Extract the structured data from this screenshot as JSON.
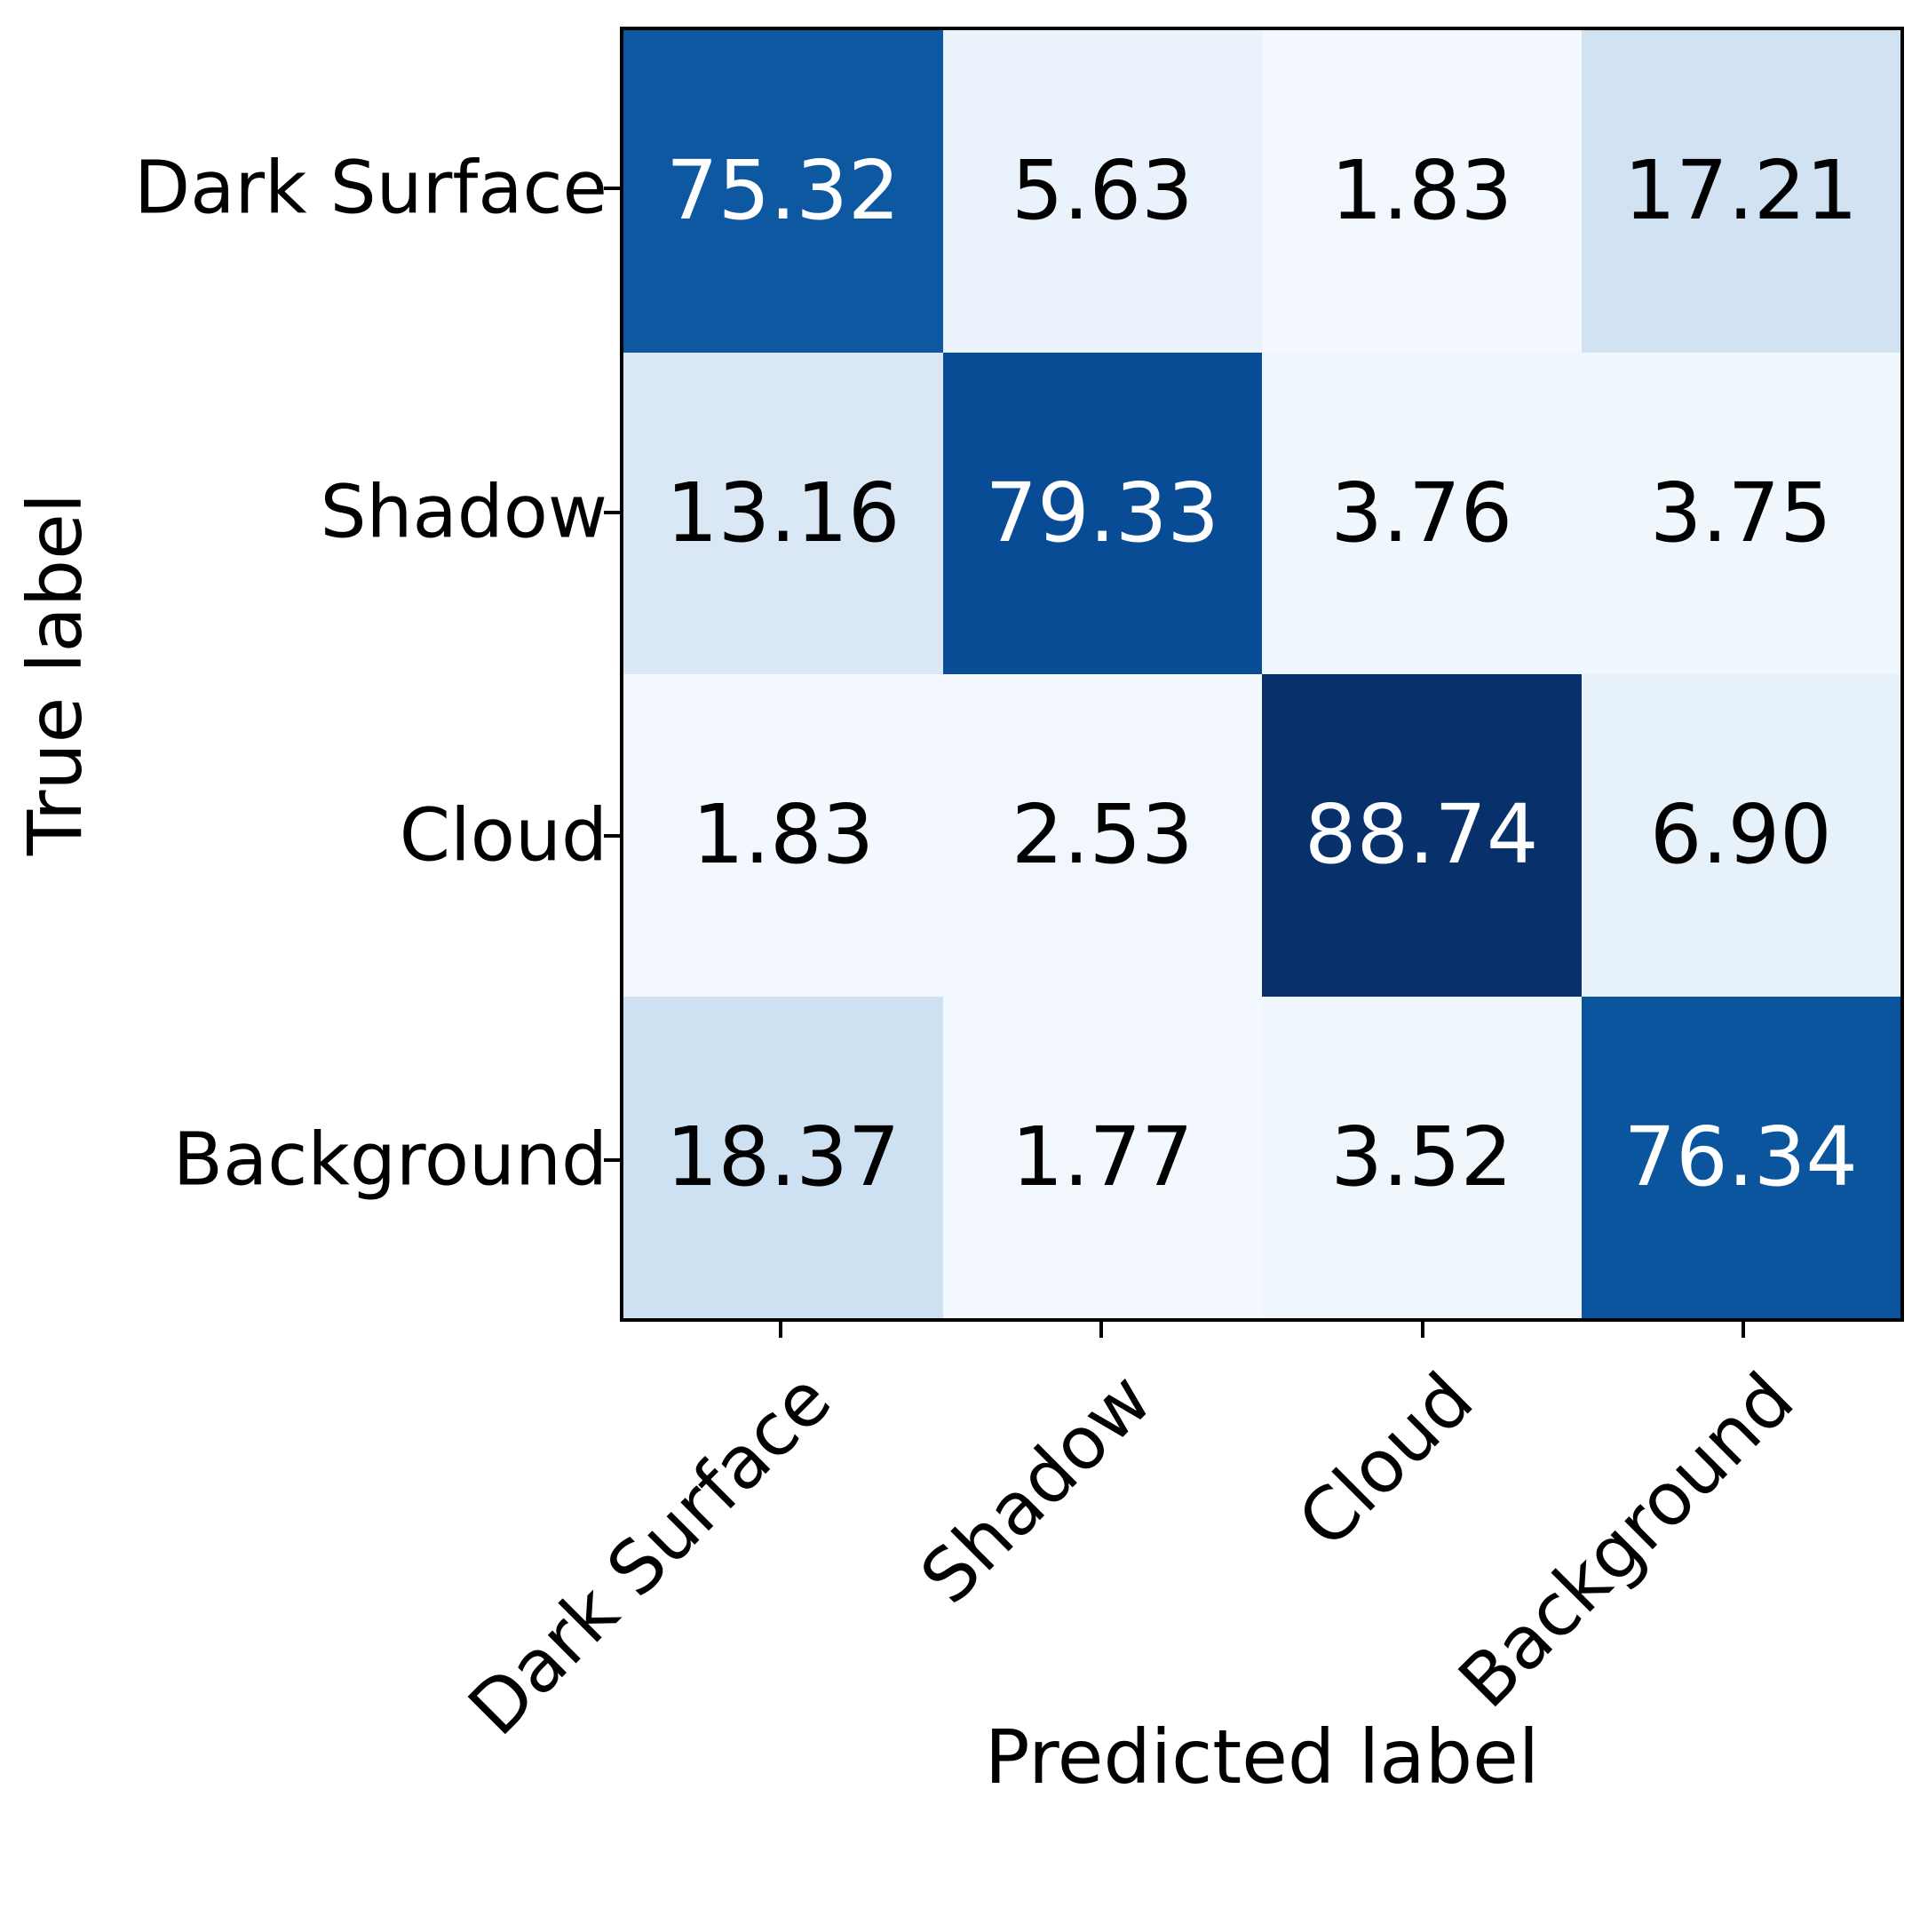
{
  "chart_data": {
    "type": "heatmap",
    "subtype": "confusion-matrix",
    "title": "",
    "xlabel": "Predicted label",
    "ylabel": "True label",
    "x_categories": [
      "Dark Surface",
      "Shadow",
      "Cloud",
      "Background"
    ],
    "y_categories": [
      "Dark Surface",
      "Shadow",
      "Cloud",
      "Background"
    ],
    "values": [
      [
        75.32,
        5.63,
        1.83,
        17.21
      ],
      [
        13.16,
        79.33,
        3.76,
        3.75
      ],
      [
        1.83,
        2.53,
        88.74,
        6.9
      ],
      [
        18.37,
        1.77,
        3.52,
        76.34
      ]
    ],
    "value_decimals": 2,
    "colormap": "Blues",
    "vmin": 0,
    "vmax": 88.74,
    "cell_colors": [
      [
        "#0d58a1",
        "#eaf3fb",
        "#f3f8fe",
        "#d1e2f3"
      ],
      [
        "#dae8f5",
        "#084c95",
        "#eff6fc",
        "#eff6fc"
      ],
      [
        "#f3f8fe",
        "#f1f7fd",
        "#08306b",
        "#e7f1fa"
      ],
      [
        "#cee1f2",
        "#f3f8fe",
        "#eff6fc",
        "#0b559f"
      ]
    ],
    "cell_text_colors": [
      [
        "#ffffff",
        "#000000",
        "#000000",
        "#000000"
      ],
      [
        "#000000",
        "#ffffff",
        "#000000",
        "#000000"
      ],
      [
        "#000000",
        "#000000",
        "#ffffff",
        "#000000"
      ],
      [
        "#000000",
        "#000000",
        "#000000",
        "#ffffff"
      ]
    ],
    "x_tick_rotation_deg": 45,
    "grid": false,
    "legend": "none",
    "colorbar": false,
    "background_color": "#ffffff",
    "spine_color": "#000000"
  }
}
